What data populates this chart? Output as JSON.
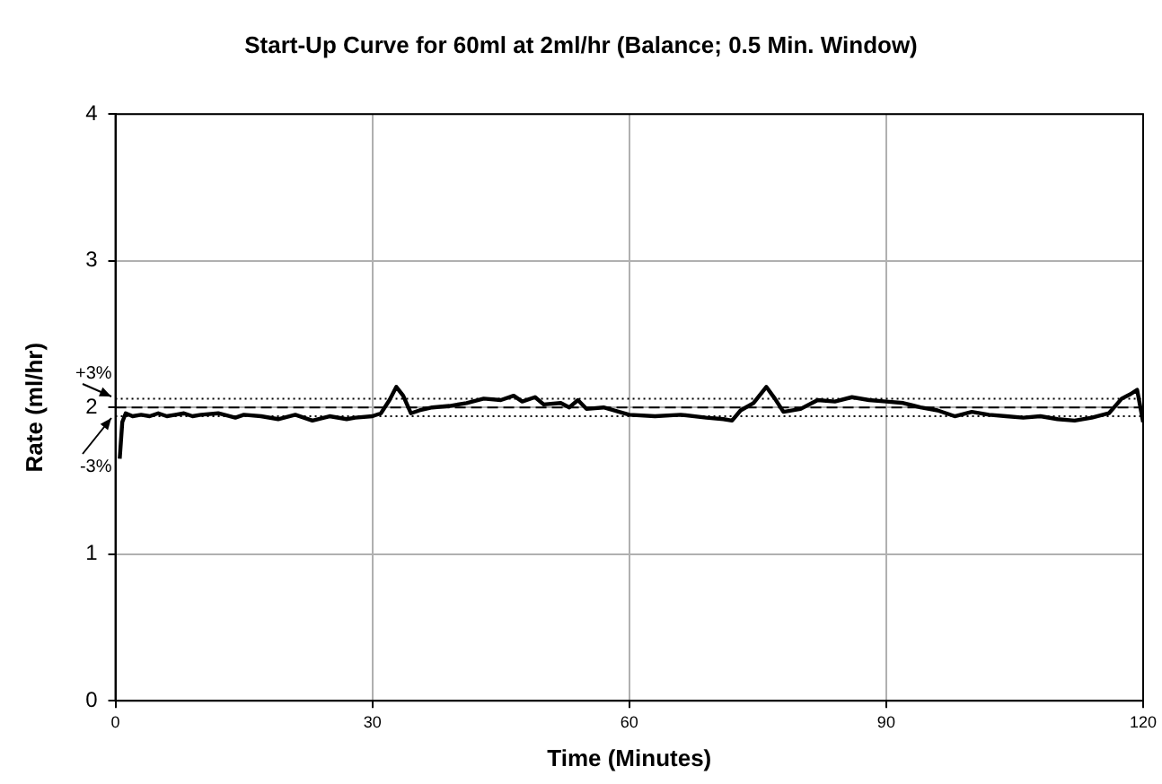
{
  "chart_data": {
    "type": "line",
    "title": "Start-Up Curve for 60ml at 2ml/hr (Balance; 0.5 Min. Window)",
    "xlabel": "Time (Minutes)",
    "ylabel": "Rate (ml/hr)",
    "x": [
      0.5,
      0.8,
      1.2,
      2,
      3,
      4,
      5,
      6,
      7,
      8,
      9,
      10,
      12,
      14,
      15,
      17,
      19,
      21,
      23,
      25,
      27,
      28,
      30,
      31,
      32,
      32.8,
      33.6,
      34.5,
      35.5,
      37,
      39,
      41,
      43,
      45,
      46.5,
      47.5,
      49,
      50,
      52,
      53,
      54,
      55,
      57,
      60,
      63,
      66,
      69,
      71,
      72,
      73,
      74.5,
      76,
      77,
      78,
      80,
      82,
      84,
      86,
      88,
      90,
      92,
      94,
      96,
      98,
      100,
      102,
      104,
      106,
      108,
      110,
      112,
      114,
      116,
      117.5,
      118.5,
      119.3,
      120
    ],
    "series": [
      {
        "color": "#000000",
        "values": [
          1.65,
          1.9,
          1.96,
          1.94,
          1.95,
          1.94,
          1.96,
          1.94,
          1.95,
          1.96,
          1.94,
          1.95,
          1.96,
          1.93,
          1.95,
          1.94,
          1.92,
          1.95,
          1.91,
          1.94,
          1.92,
          1.93,
          1.94,
          1.96,
          2.05,
          2.14,
          2.08,
          1.96,
          1.98,
          2.0,
          2.01,
          2.03,
          2.06,
          2.05,
          2.08,
          2.04,
          2.07,
          2.02,
          2.03,
          2.0,
          2.05,
          1.99,
          2.0,
          1.95,
          1.94,
          1.95,
          1.93,
          1.92,
          1.91,
          1.98,
          2.03,
          2.14,
          2.06,
          1.97,
          1.99,
          2.05,
          2.04,
          2.07,
          2.05,
          2.04,
          2.03,
          2.0,
          1.98,
          1.94,
          1.97,
          1.95,
          1.94,
          1.93,
          1.94,
          1.92,
          1.91,
          1.93,
          1.96,
          2.06,
          2.09,
          2.12,
          1.9
        ]
      }
    ],
    "xlim": [
      0,
      120
    ],
    "xticks": [
      0,
      30,
      60,
      90,
      120
    ],
    "ylim": [
      0,
      4
    ],
    "yticks": [
      0,
      1,
      2,
      3,
      4
    ],
    "grid": true,
    "legend": false,
    "marker": "none",
    "line_style": "solid",
    "ref_lines": [
      {
        "axis": "y",
        "value": 2.06,
        "line_style": "dotted",
        "color": "#000000"
      },
      {
        "axis": "y",
        "value": 2.0,
        "line_style": "dashed",
        "color": "#000000"
      },
      {
        "axis": "y",
        "value": 1.94,
        "line_style": "dotted",
        "color": "#000000"
      }
    ],
    "annotations": [
      {
        "text": "+3%",
        "x": 0,
        "y": 2.06
      },
      {
        "text": "-3%",
        "x": 0,
        "y": 1.94
      }
    ]
  }
}
